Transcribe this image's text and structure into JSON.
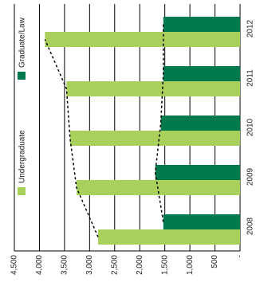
{
  "chart_data": {
    "type": "bar",
    "orientation": "rotated",
    "categories": [
      "2008",
      "2009",
      "2010",
      "2011",
      "2012"
    ],
    "series": [
      {
        "name": "Undergraduate",
        "color": "#a8d05a",
        "values": [
          2830,
          3260,
          3390,
          3460,
          3890
        ]
      },
      {
        "name": "Graduate/Law",
        "color": "#007a4d",
        "values": [
          1530,
          1690,
          1580,
          1530,
          1530
        ]
      }
    ],
    "ylim": [
      0,
      4500
    ],
    "yticks": [
      {
        "value": 0,
        "label": "-"
      },
      500,
      {
        "value": 1000,
        "label": "1,000"
      },
      {
        "value": 1500,
        "label": "1,500"
      },
      {
        "value": 2000,
        "label": "2,000"
      },
      {
        "value": 2500,
        "label": "2,500"
      },
      {
        "value": 3000,
        "label": "3,000"
      },
      {
        "value": 3500,
        "label": "3,500"
      },
      {
        "value": 4000,
        "label": "4,000"
      },
      {
        "value": 4500,
        "label": "4,500"
      }
    ],
    "grid": true,
    "trend_lines": true
  }
}
